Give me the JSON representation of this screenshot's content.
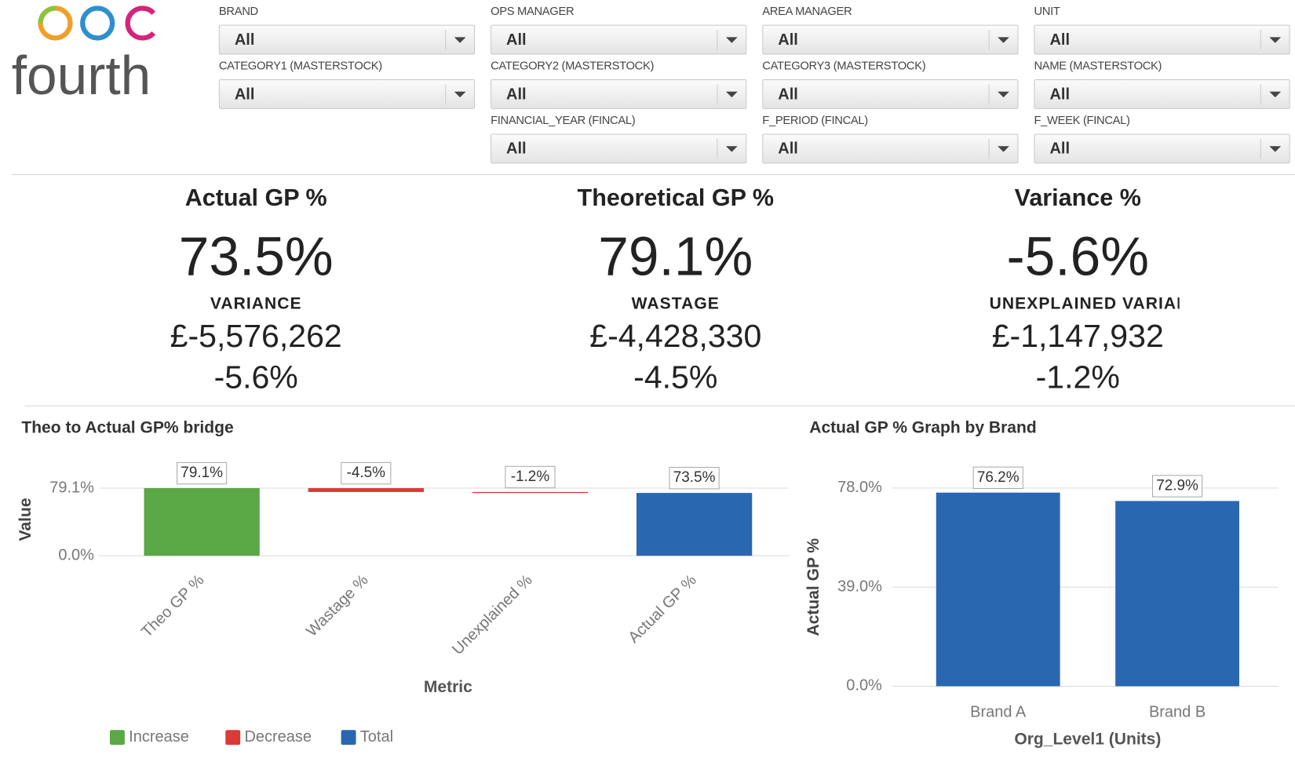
{
  "logo": "fourth",
  "filters": [
    [
      {
        "label": "BRAND",
        "value": "All"
      },
      {
        "label": "OPS MANAGER",
        "value": "All"
      },
      {
        "label": "AREA MANAGER",
        "value": "All"
      },
      {
        "label": "UNIT",
        "value": "All"
      }
    ],
    [
      {
        "label": "CATEGORY1 (MASTERSTOCK)",
        "value": "All"
      },
      {
        "label": "CATEGORY2 (MASTERSTOCK)",
        "value": "All"
      },
      {
        "label": "CATEGORY3 (MASTERSTOCK)",
        "value": "All"
      },
      {
        "label": "NAME (MASTERSTOCK)",
        "value": "All"
      }
    ],
    [
      {
        "label": "FINANCIAL_YEAR (FINCAL)",
        "value": "All"
      },
      {
        "label": "F_PERIOD (FINCAL)",
        "value": "All"
      },
      {
        "label": "F_WEEK (FINCAL)",
        "value": "All"
      }
    ]
  ],
  "kpis": [
    {
      "title": "Actual GP %",
      "value": "73.5%",
      "sub_label": "VARIANCE",
      "amount": "£-5,576,262",
      "percent": "-5.6%"
    },
    {
      "title": "Theoretical GP %",
      "value": "79.1%",
      "sub_label": "WASTAGE",
      "amount": "£-4,428,330",
      "percent": "-4.5%"
    },
    {
      "title": "Variance %",
      "value": "-5.6%",
      "sub_label": "UNEXPLAINED VARIANCE",
      "amount": "£-1,147,932",
      "percent": "-1.2%"
    }
  ],
  "chart_data": [
    {
      "type": "waterfall",
      "title": "Theo to Actual GP% bridge",
      "x_label": "Metric",
      "y_label": "Value",
      "categories": [
        "Theo GP %",
        "Wastage %",
        "Unexplained %",
        "Actual GP %"
      ],
      "series": [
        {
          "name": "Increase",
          "color": "#5aa846",
          "values": [
            79.1,
            null,
            null,
            null
          ],
          "value_labels": [
            "79.1%",
            null,
            null,
            null
          ]
        },
        {
          "name": "Decrease",
          "color": "#d93b35",
          "values": [
            null,
            -4.5,
            -1.2,
            null
          ],
          "value_labels": [
            null,
            "-4.5%",
            "-1.2%",
            null
          ]
        },
        {
          "name": "Total",
          "color": "#2a67b1",
          "values": [
            null,
            null,
            null,
            73.5
          ],
          "value_labels": [
            null,
            null,
            null,
            "73.5%"
          ]
        }
      ],
      "ylim": [
        0,
        85
      ],
      "yticks": [
        {
          "value": 0,
          "label": "0.0%"
        },
        {
          "value": 79.1,
          "label": "79.1%"
        }
      ],
      "grid": true,
      "legend": "bottom"
    },
    {
      "type": "bar",
      "title": "Actual GP % Graph by Brand",
      "x_label": "Org_Level1 (Units)",
      "y_label": "Actual GP %",
      "categories": [
        "Brand A",
        "Brand B"
      ],
      "values": [
        76.2,
        72.9
      ],
      "value_labels": [
        "76.2%",
        "72.9%"
      ],
      "color": "#2a67b1",
      "ylim": [
        0,
        78
      ],
      "yticks": [
        {
          "value": 0,
          "label": "0.0%"
        },
        {
          "value": 39,
          "label": "39.0%"
        },
        {
          "value": 78,
          "label": "78.0%"
        }
      ],
      "grid": true
    }
  ]
}
